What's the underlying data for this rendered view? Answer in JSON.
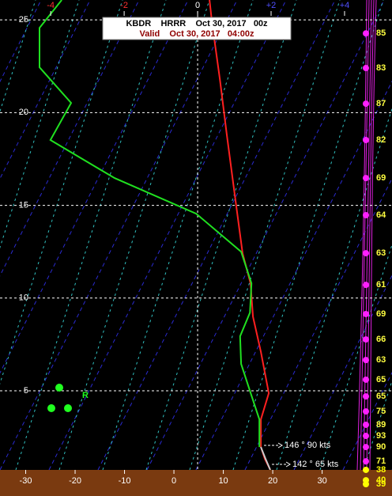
{
  "chart_data": {
    "type": "line",
    "title": "KBDR    HRRR    Oct 30, 2017   00z",
    "subtitle": "Valid    Oct 30, 2017   04:00z",
    "xlim": [
      -35.2,
      38.7
    ],
    "xticks": [
      -30,
      -20,
      -10,
      0,
      10,
      20,
      30
    ],
    "x2lim": [
      -5.38,
      4.56
    ],
    "x2ticks": [
      -4,
      -2,
      0,
      {
        "value": 2,
        "label": "+2"
      },
      {
        "value": 4,
        "label": "+4"
      }
    ],
    "ylim": [
      -0.67,
      26.07
    ],
    "yticks": [
      5,
      10,
      15,
      20,
      25
    ],
    "grid": true,
    "series": [
      {
        "color": "#ff2020",
        "x": [
          7.2,
          7.7,
          9.3,
          10.7,
          12.2,
          13.9,
          15.5,
          16.0,
          17.6,
          19.2,
          17.6,
          17.6,
          18.4,
          19.5
        ],
        "values": [
          26.07,
          24.87,
          21.8,
          18.8,
          15.8,
          12.4,
          10.8,
          9.0,
          7.1,
          4.87,
          3.46,
          1.97,
          1.33,
          0.74
        ]
      },
      {
        "color": "#20e020",
        "x": [
          -22.7,
          -27.2,
          -27.2,
          -20.8,
          -25.0,
          -12.0,
          4.5,
          13.6,
          15.7,
          15.4,
          13.4,
          13.6,
          15.7,
          17.3,
          17.3
        ],
        "values": [
          26.07,
          24.57,
          22.44,
          20.52,
          18.52,
          16.47,
          14.55,
          12.5,
          10.8,
          9.22,
          7.94,
          6.45,
          4.74,
          3.46,
          1.97
        ]
      }
    ],
    "rh": {
      "heights": [
        24.27,
        22.4,
        20.48,
        18.52,
        16.47,
        14.47,
        12.42,
        10.71,
        9.14,
        7.77,
        6.66,
        5.6,
        4.7,
        3.89,
        3.17,
        2.57,
        1.97,
        1.2,
        0.74,
        0.18,
        -0.03
      ],
      "values": [
        85,
        83,
        87,
        82,
        69,
        64,
        63,
        61,
        69,
        66,
        63,
        65,
        65,
        75,
        89,
        93,
        90,
        71,
        38,
        40,
        39
      ],
      "colors": [
        "#ff20ff",
        "#ff20ff",
        "#ff20ff",
        "#ff20ff",
        "#ff20ff",
        "#ff20ff",
        "#ff20ff",
        "#ff20ff",
        "#ff20ff",
        "#ff20ff",
        "#ff20ff",
        "#ff20ff",
        "#ff20ff",
        "#ff20ff",
        "#ff20ff",
        "#ff20ff",
        "#ff20ff",
        "#ff20ff",
        "#ffff00",
        "#ffff00",
        "#ffff00"
      ]
    },
    "winds": [
      "146 ° 90 kts",
      "142 ° 65 kts"
    ],
    "precip_label": "R"
  }
}
